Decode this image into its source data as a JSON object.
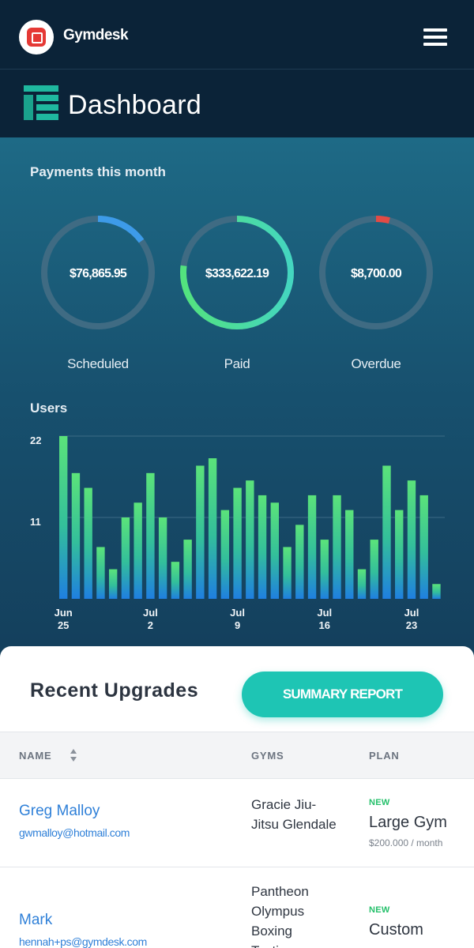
{
  "header": {
    "app_name": "Gymdesk",
    "logo_icon": "gymdesk-logo-icon",
    "menu_icon": "hamburger-menu-icon"
  },
  "page": {
    "title": "Dashboard",
    "icon": "dashboard-icon"
  },
  "payments": {
    "title": "Payments this month",
    "items": [
      {
        "label": "Scheduled",
        "value": "$76,865.95",
        "fraction": 0.15,
        "color": "#3d9be9"
      },
      {
        "label": "Paid",
        "value": "$333,622.19",
        "fraction": 0.77,
        "color": "#4fe08a"
      },
      {
        "label": "Overdue",
        "value": "$8,700.00",
        "fraction": 0.04,
        "color": "#e34b45"
      }
    ]
  },
  "chart_data": {
    "type": "bar",
    "title": "Users",
    "ylim": [
      0,
      22
    ],
    "y_ticks": [
      "22",
      "11"
    ],
    "x_tick_labels": [
      {
        "month": "Jun",
        "day": "25"
      },
      {
        "month": "Jul",
        "day": "2"
      },
      {
        "month": "Jul",
        "day": "9"
      },
      {
        "month": "Jul",
        "day": "16"
      },
      {
        "month": "Jul",
        "day": "23"
      }
    ],
    "values": [
      22,
      17,
      15,
      7,
      4,
      11,
      13,
      17,
      11,
      5,
      8,
      18,
      19,
      12,
      15,
      16,
      14,
      13,
      7,
      10,
      14,
      8,
      14,
      12,
      4,
      8,
      18,
      12,
      16,
      14,
      2
    ],
    "grid": true
  },
  "upgrades": {
    "title": "Recent Upgrades",
    "report_button": "SUMMARY REPORT",
    "columns": {
      "name": "NAME",
      "gyms": "GYMS",
      "plan": "PLAN"
    },
    "rows": [
      {
        "name": "Greg Malloy",
        "email": "gwmalloy@hotmail.com",
        "gym": "Gracie Jiu-Jitsu Glendale",
        "badge": "NEW",
        "plan": "Large Gym",
        "price": "$200.000 / month"
      },
      {
        "name": "Mark",
        "email": "hennah+ps@gymdesk.com",
        "gym": "Pantheon Olympus Boxing Testing",
        "badge": "NEW",
        "plan": "Custom",
        "price": ""
      }
    ]
  }
}
